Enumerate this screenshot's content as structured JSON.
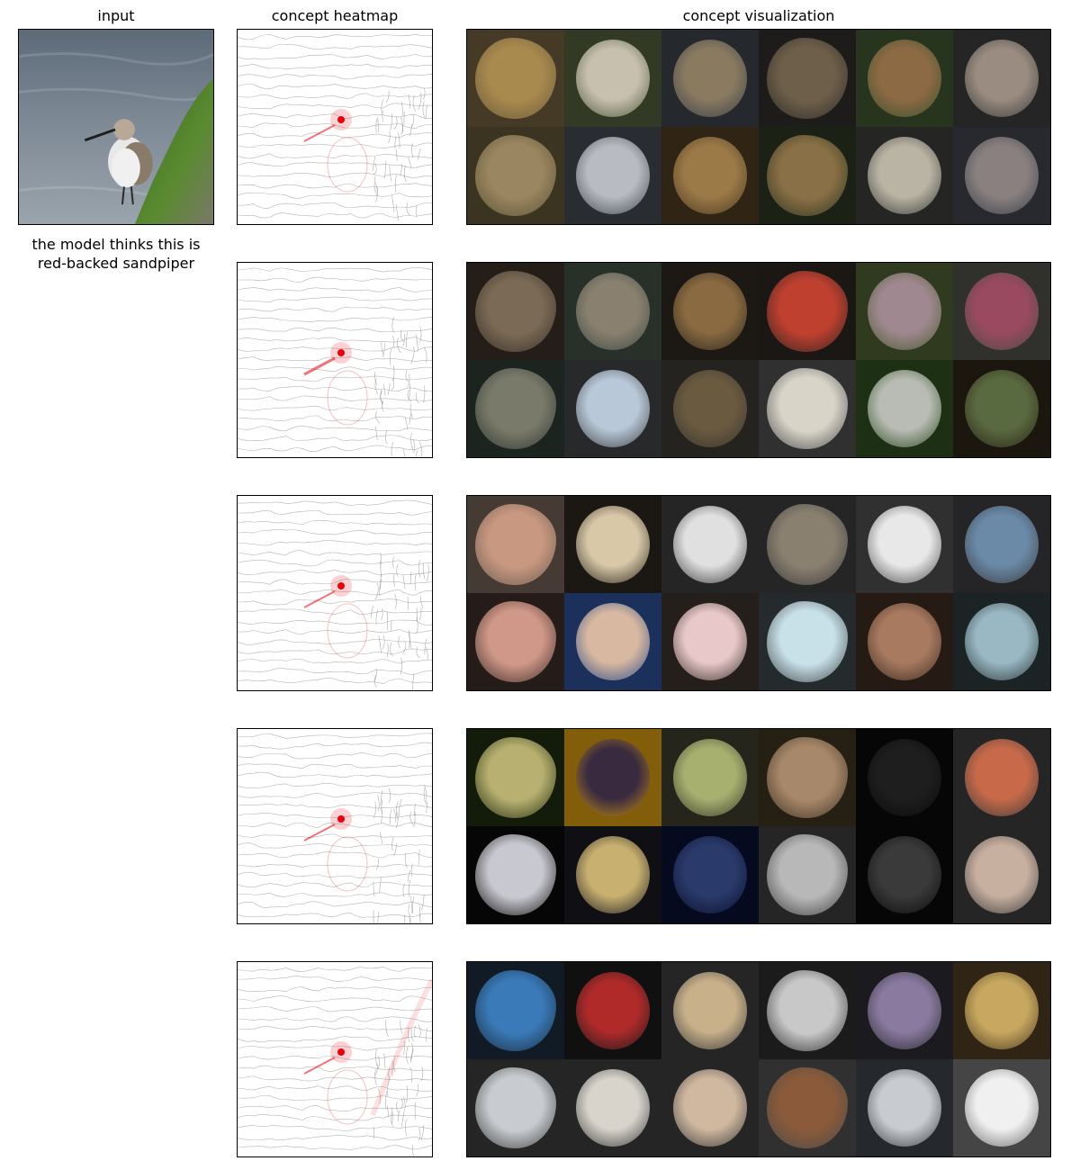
{
  "headers": {
    "input": "input",
    "heatmap": "concept heatmap",
    "visualization": "concept visualization"
  },
  "prediction": {
    "line1": "the model thinks this is",
    "line2": "red-backed sandpiper"
  },
  "colors": {
    "heat_red": "#e8000b",
    "edge_line": "#777777",
    "frame": "#000000"
  },
  "concept_rows": [
    {
      "tiles": [
        [
          "#6b5a3a",
          "#a8894e"
        ],
        [
          "#4e5a3a",
          "#c8c0ae"
        ],
        [
          "#3a3f48",
          "#8a7a60"
        ],
        [
          "#2f2c28",
          "#6e5f4a"
        ],
        [
          "#3c5230",
          "#8c6a44"
        ],
        [
          "#3a3a3a",
          "#9a8c80"
        ],
        [
          "#5a5034",
          "#9a8660"
        ],
        [
          "#40454c",
          "#b8bcc2"
        ],
        [
          "#4a3820",
          "#9c7a48"
        ],
        [
          "#2a3320",
          "#8a7046"
        ],
        [
          "#3a3a38",
          "#bab4a4"
        ],
        [
          "#3c4048",
          "#8a8080"
        ]
      ]
    },
    {
      "tiles": [
        [
          "#3a2f26",
          "#7a6a56"
        ],
        [
          "#3d4a40",
          "#8a8070"
        ],
        [
          "#2c2620",
          "#8a6a40"
        ],
        [
          "#2a2420",
          "#c04030"
        ],
        [
          "#4a5a30",
          "#a08890"
        ],
        [
          "#4a4a44",
          "#9a4a60"
        ],
        [
          "#2c3830",
          "#7a7a6a"
        ],
        [
          "#3e4042",
          "#b8c8d8"
        ],
        [
          "#3a3630",
          "#6a5a40"
        ],
        [
          "#4a4a4a",
          "#d8d4c8"
        ],
        [
          "#2e4a20",
          "#b8bcb4"
        ],
        [
          "#2a2418",
          "#5a6a40"
        ]
      ]
    },
    {
      "tiles": [
        [
          "#6a5a50",
          "#c89880"
        ],
        [
          "#2a241c",
          "#d8c8a8"
        ],
        [
          "#3a3a3a",
          "#e0e0e0"
        ],
        [
          "#3a3a3a",
          "#8a8070"
        ],
        [
          "#4a4a4a",
          "#e8e8e8"
        ],
        [
          "#3a3a3c",
          "#6a8aa8"
        ],
        [
          "#3a2a26",
          "#d09888"
        ],
        [
          "#2a4a8a",
          "#d8b8a0"
        ],
        [
          "#3a302c",
          "#e8c8c8"
        ],
        [
          "#3a4244",
          "#c8e0e8"
        ],
        [
          "#3a2a20",
          "#a87a60"
        ],
        [
          "#2a3638",
          "#9ab8c4"
        ]
      ]
    },
    {
      "tiles": [
        [
          "#1e2a10",
          "#b8b070"
        ],
        [
          "#c89010",
          "#3a2a40"
        ],
        [
          "#3a3a2a",
          "#a8b070"
        ],
        [
          "#3a3020",
          "#a8886a"
        ],
        [
          "#0a0a0a",
          "#1e1e1e"
        ],
        [
          "#3a3a3a",
          "#c86a4a"
        ],
        [
          "#0a0a0a",
          "#c8c8d0"
        ],
        [
          "#1a1a20",
          "#c8b070"
        ],
        [
          "#0a1030",
          "#2a3a6a"
        ],
        [
          "#3a3a3a",
          "#b8b8b8"
        ],
        [
          "#0a0a0a",
          "#3a3a3a"
        ],
        [
          "#3a3a3a",
          "#c8b0a0"
        ]
      ]
    },
    {
      "tiles": [
        [
          "#1a2a3a",
          "#3a7ab8"
        ],
        [
          "#1a1a1a",
          "#b02a2a"
        ],
        [
          "#3a3a3a",
          "#c8b08a"
        ],
        [
          "#2a2a2a",
          "#c8c8c8"
        ],
        [
          "#2a2a30",
          "#8a7aa0"
        ],
        [
          "#4a3a20",
          "#c8a860"
        ],
        [
          "#3a3a3a",
          "#c8ccd0"
        ],
        [
          "#3a3a3a",
          "#d8d4cc"
        ],
        [
          "#3a3a3a",
          "#d0b8a0"
        ],
        [
          "#4a4a4a",
          "#8a5a3a"
        ],
        [
          "#3a3e44",
          "#c8ccd0"
        ],
        [
          "#6a6a6a",
          "#f0f0f0"
        ]
      ]
    }
  ]
}
